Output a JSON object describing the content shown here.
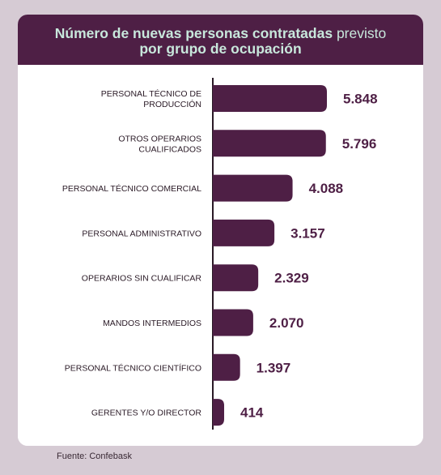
{
  "title": {
    "bold": "Número de nuevas personas contratadas",
    "light": "previsto",
    "line2": "por grupo de ocupación"
  },
  "source": "Fuente: Confebask",
  "colors": {
    "bar": "#4e1f45",
    "header_bg": "#4e1f45",
    "title_text": "#c8e8dc",
    "value_text": "#4e1f45",
    "background": "#d6cbd4"
  },
  "chart_data": {
    "type": "bar",
    "orientation": "horizontal",
    "categories": [
      [
        "PERSONAL TÉCNICO DE",
        "PRODUCCIÓN"
      ],
      [
        "OTROS OPERARIOS",
        "CUALIFICADOS"
      ],
      [
        "PERSONAL TÉCNICO COMERCIAL"
      ],
      [
        "PERSONAL ADMINISTRATIVO"
      ],
      [
        "OPERARIOS SIN CUALIFICAR"
      ],
      [
        "MANDOS INTERMEDIOS"
      ],
      [
        "PERSONAL TÉCNICO CIENTÍFICO"
      ],
      [
        "GERENTES Y/O DIRECTOR"
      ]
    ],
    "values": [
      5848,
      5796,
      4088,
      3157,
      2329,
      2070,
      1397,
      414
    ],
    "value_labels": [
      "5.848",
      "5.796",
      "4.088",
      "3.157",
      "2.329",
      "2.070",
      "1.397",
      "414"
    ],
    "title": "Número de nuevas personas contratadas previsto por grupo de ocupación",
    "xlabel": "",
    "ylabel": "",
    "xlim": [
      0,
      6000
    ],
    "grid": false
  }
}
